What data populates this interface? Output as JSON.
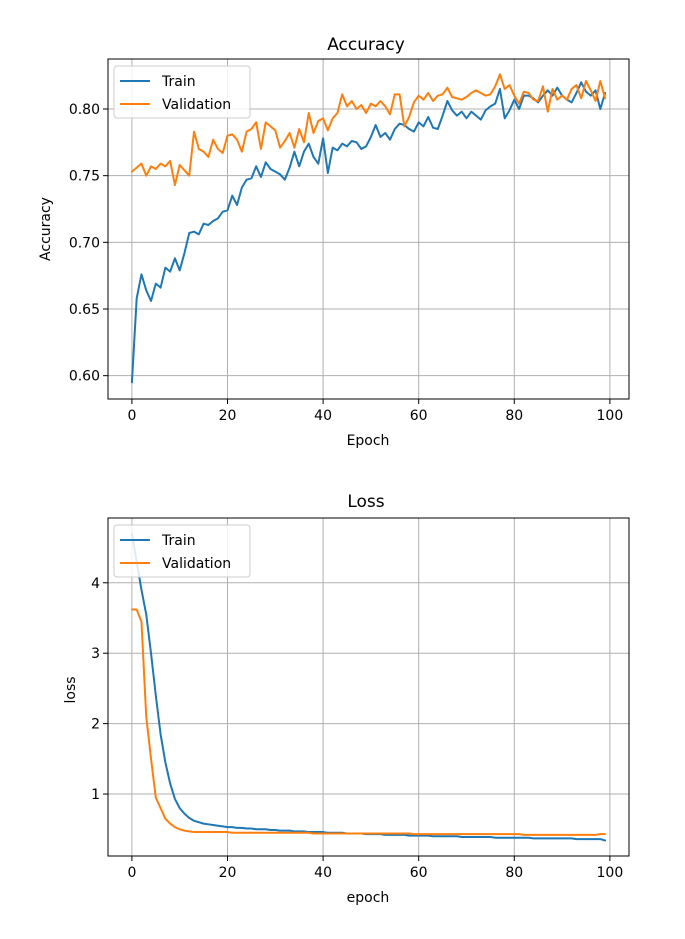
{
  "chart_data": [
    {
      "type": "line",
      "title": "Accuracy",
      "xlabel": "Epoch",
      "ylabel": "Accuracy",
      "xlim": [
        -5,
        104
      ],
      "ylim": [
        0.5825,
        0.8375
      ],
      "xticks": [
        0,
        20,
        40,
        60,
        80,
        100
      ],
      "xtick_labels": [
        "0",
        "20",
        "40",
        "60",
        "80",
        "100"
      ],
      "yticks": [
        0.6,
        0.65,
        0.7,
        0.75,
        0.8
      ],
      "ytick_labels": [
        "0.60",
        "0.65",
        "0.70",
        "0.75",
        "0.80"
      ],
      "grid": true,
      "legend_position": "upper-left",
      "series": [
        {
          "name": "Train",
          "color": "#1f77b4",
          "values": [
            0.595,
            0.658,
            0.676,
            0.664,
            0.656,
            0.669,
            0.666,
            0.681,
            0.678,
            0.688,
            0.679,
            0.692,
            0.707,
            0.708,
            0.706,
            0.714,
            0.713,
            0.716,
            0.718,
            0.723,
            0.724,
            0.735,
            0.728,
            0.741,
            0.747,
            0.748,
            0.757,
            0.749,
            0.76,
            0.755,
            0.753,
            0.751,
            0.747,
            0.756,
            0.768,
            0.757,
            0.768,
            0.774,
            0.764,
            0.759,
            0.778,
            0.752,
            0.771,
            0.769,
            0.774,
            0.772,
            0.776,
            0.775,
            0.77,
            0.772,
            0.779,
            0.788,
            0.779,
            0.782,
            0.777,
            0.785,
            0.789,
            0.788,
            0.785,
            0.783,
            0.79,
            0.787,
            0.794,
            0.786,
            0.785,
            0.795,
            0.806,
            0.799,
            0.795,
            0.798,
            0.793,
            0.798,
            0.795,
            0.792,
            0.799,
            0.802,
            0.804,
            0.815,
            0.793,
            0.799,
            0.807,
            0.8,
            0.81,
            0.81,
            0.808,
            0.805,
            0.81,
            0.814,
            0.81,
            0.816,
            0.81,
            0.807,
            0.805,
            0.812,
            0.82,
            0.813,
            0.81,
            0.814,
            0.8,
            0.812
          ]
        },
        {
          "name": "Validation",
          "color": "#ff7f0e",
          "values": [
            0.753,
            0.756,
            0.759,
            0.75,
            0.757,
            0.755,
            0.759,
            0.757,
            0.761,
            0.743,
            0.758,
            0.754,
            0.75,
            0.783,
            0.77,
            0.768,
            0.764,
            0.777,
            0.77,
            0.767,
            0.78,
            0.781,
            0.777,
            0.768,
            0.783,
            0.785,
            0.79,
            0.77,
            0.79,
            0.787,
            0.784,
            0.771,
            0.776,
            0.782,
            0.771,
            0.785,
            0.775,
            0.797,
            0.782,
            0.791,
            0.793,
            0.784,
            0.793,
            0.797,
            0.811,
            0.802,
            0.806,
            0.8,
            0.803,
            0.797,
            0.804,
            0.802,
            0.806,
            0.802,
            0.796,
            0.811,
            0.811,
            0.787,
            0.794,
            0.805,
            0.81,
            0.807,
            0.812,
            0.806,
            0.81,
            0.811,
            0.816,
            0.809,
            0.808,
            0.807,
            0.809,
            0.812,
            0.814,
            0.812,
            0.81,
            0.811,
            0.817,
            0.826,
            0.815,
            0.818,
            0.81,
            0.804,
            0.813,
            0.812,
            0.807,
            0.806,
            0.817,
            0.798,
            0.815,
            0.807,
            0.81,
            0.807,
            0.815,
            0.818,
            0.808,
            0.821,
            0.814,
            0.806,
            0.821,
            0.808
          ]
        }
      ]
    },
    {
      "type": "line",
      "title": "Loss",
      "xlabel": "epoch",
      "ylabel": "loss",
      "xlim": [
        -5,
        104
      ],
      "ylim": [
        0.12,
        4.92
      ],
      "xticks": [
        0,
        20,
        40,
        60,
        80,
        100
      ],
      "xtick_labels": [
        "0",
        "20",
        "40",
        "60",
        "80",
        "100"
      ],
      "yticks": [
        1,
        2,
        3,
        4
      ],
      "ytick_labels": [
        "1",
        "2",
        "3",
        "4"
      ],
      "grid": true,
      "legend_position": "upper-left",
      "series": [
        {
          "name": "Train",
          "color": "#1f77b4",
          "values": [
            4.7,
            4.3,
            3.9,
            3.55,
            3.0,
            2.4,
            1.85,
            1.45,
            1.15,
            0.93,
            0.8,
            0.72,
            0.66,
            0.62,
            0.6,
            0.58,
            0.57,
            0.56,
            0.55,
            0.54,
            0.53,
            0.53,
            0.52,
            0.52,
            0.51,
            0.51,
            0.5,
            0.5,
            0.5,
            0.49,
            0.49,
            0.48,
            0.48,
            0.48,
            0.47,
            0.47,
            0.47,
            0.46,
            0.46,
            0.46,
            0.46,
            0.45,
            0.45,
            0.45,
            0.45,
            0.44,
            0.44,
            0.44,
            0.44,
            0.43,
            0.43,
            0.43,
            0.43,
            0.42,
            0.42,
            0.42,
            0.42,
            0.42,
            0.41,
            0.41,
            0.41,
            0.41,
            0.41,
            0.4,
            0.4,
            0.4,
            0.4,
            0.4,
            0.4,
            0.39,
            0.39,
            0.39,
            0.39,
            0.39,
            0.39,
            0.39,
            0.38,
            0.38,
            0.38,
            0.38,
            0.38,
            0.38,
            0.38,
            0.38,
            0.37,
            0.37,
            0.37,
            0.37,
            0.37,
            0.37,
            0.37,
            0.37,
            0.37,
            0.36,
            0.36,
            0.36,
            0.36,
            0.36,
            0.36,
            0.34
          ]
        },
        {
          "name": "Validation",
          "color": "#ff7f0e",
          "values": [
            3.62,
            3.62,
            3.45,
            2.1,
            1.5,
            0.95,
            0.8,
            0.65,
            0.58,
            0.53,
            0.5,
            0.48,
            0.47,
            0.46,
            0.46,
            0.46,
            0.46,
            0.46,
            0.46,
            0.46,
            0.46,
            0.45,
            0.45,
            0.45,
            0.45,
            0.45,
            0.45,
            0.45,
            0.45,
            0.45,
            0.45,
            0.45,
            0.45,
            0.45,
            0.45,
            0.45,
            0.45,
            0.45,
            0.44,
            0.44,
            0.44,
            0.44,
            0.44,
            0.44,
            0.44,
            0.44,
            0.44,
            0.44,
            0.44,
            0.44,
            0.44,
            0.44,
            0.44,
            0.44,
            0.44,
            0.44,
            0.44,
            0.44,
            0.44,
            0.43,
            0.43,
            0.43,
            0.43,
            0.43,
            0.43,
            0.43,
            0.43,
            0.43,
            0.43,
            0.43,
            0.43,
            0.43,
            0.43,
            0.43,
            0.43,
            0.43,
            0.43,
            0.43,
            0.43,
            0.43,
            0.43,
            0.43,
            0.42,
            0.42,
            0.42,
            0.42,
            0.42,
            0.42,
            0.42,
            0.42,
            0.42,
            0.42,
            0.42,
            0.42,
            0.42,
            0.42,
            0.42,
            0.42,
            0.43,
            0.43
          ]
        }
      ]
    }
  ]
}
